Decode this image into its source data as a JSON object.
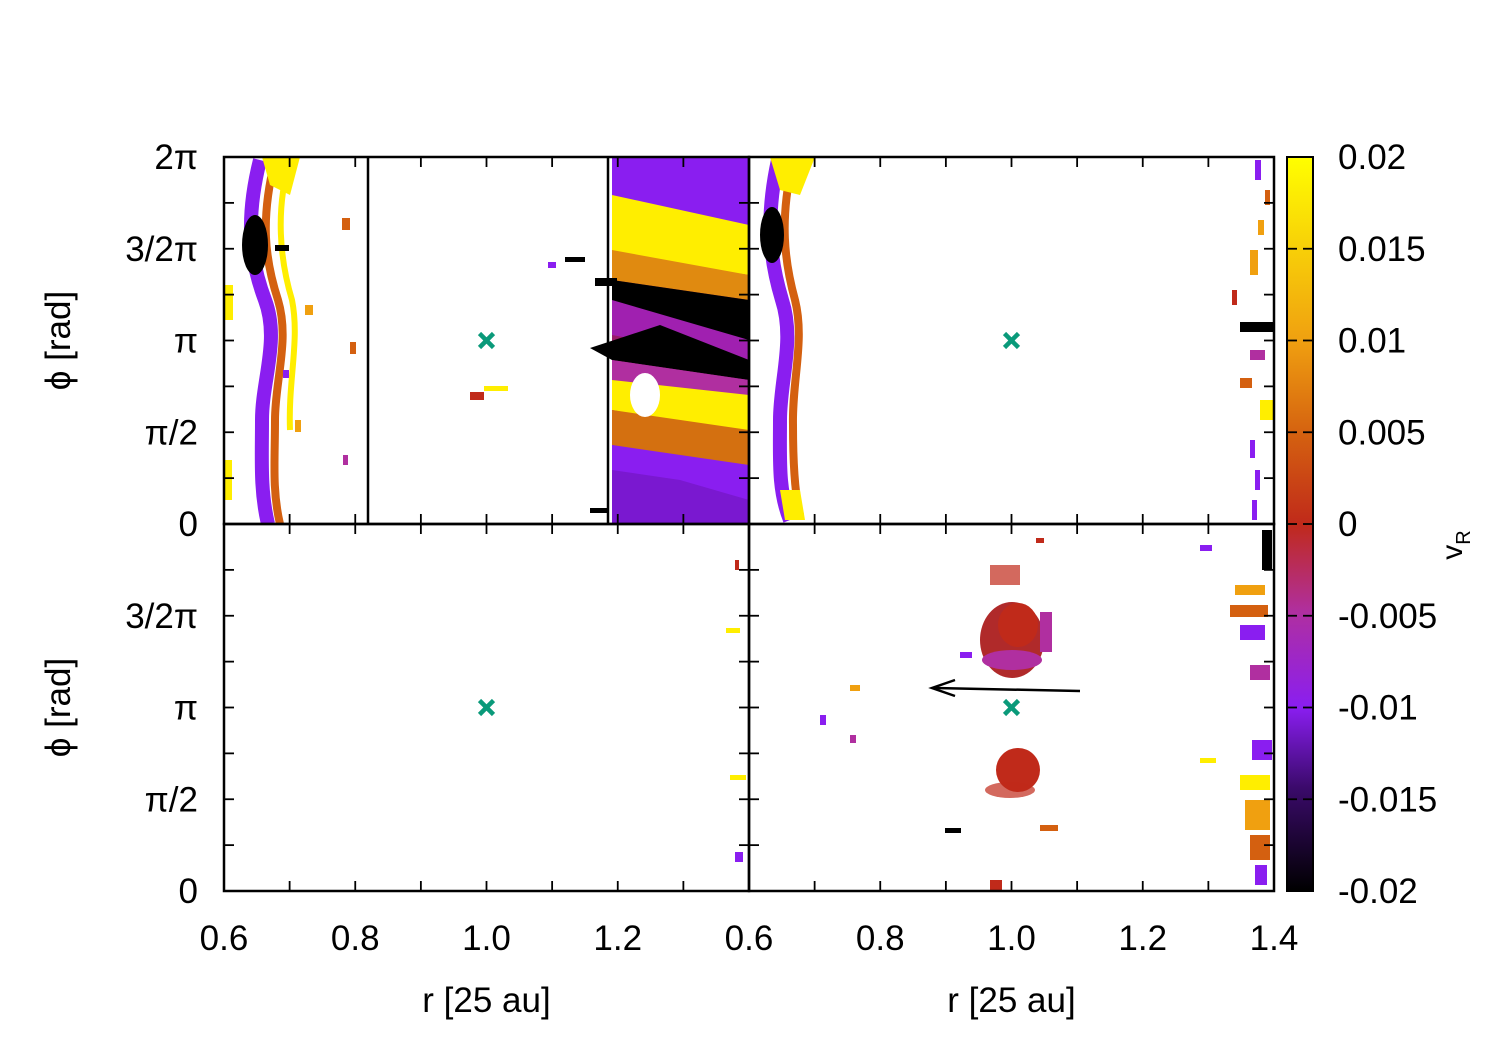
{
  "chart_data": {
    "type": "heatmap",
    "description_units": "r in units of 25 au, phi in radians, colour = v_R",
    "shared_x": {
      "label": "r [25 au]",
      "range": [
        0.6,
        1.4
      ],
      "tick_labels": [
        "0.6",
        "0.8",
        "1.0",
        "1.2",
        "1.4"
      ],
      "tick_values": [
        0.6,
        0.8,
        1.0,
        1.2,
        1.4
      ]
    },
    "shared_y": {
      "label": "ϕ [rad]",
      "range": [
        0,
        6.2832
      ],
      "tick_labels": [
        "0",
        "π/2",
        "π",
        "3/2π",
        "2π"
      ],
      "tick_values": [
        0,
        1.5708,
        3.1416,
        4.7124,
        6.2832
      ]
    },
    "colorbar": {
      "label": "v",
      "label_sub": "R",
      "range": [
        -0.02,
        0.02
      ],
      "tick_labels": [
        "0.02",
        "0.015",
        "0.01",
        "0.005",
        "0",
        "-0.005",
        "-0.01",
        "-0.015",
        "-0.02"
      ],
      "tick_values": [
        0.02,
        0.015,
        0.01,
        0.005,
        0,
        -0.005,
        -0.01,
        -0.015,
        -0.02
      ],
      "colormap": [
        "#000000",
        "#3a0a6a",
        "#8a1ef0",
        "#b02fa0",
        "#c02a1a",
        "#d46010",
        "#f0a010",
        "#ffff00"
      ]
    },
    "panels": [
      {
        "id": "top-left",
        "planet": {
          "r": 1.0,
          "phi": 3.1416,
          "marker": "x",
          "color": "#0a9a7a"
        },
        "boundary_lines_r": [
          0.82,
          1.18
        ],
        "features": [
          {
            "kind": "spiral-wake",
            "r_center": 0.66,
            "note": "inner spiral arms"
          },
          {
            "kind": "outer-disc",
            "r_from": 1.18,
            "r_to": 1.4,
            "note": "dense colored outer region"
          }
        ]
      },
      {
        "id": "top-right",
        "planet": {
          "r": 1.0,
          "phi": 3.1416,
          "marker": "x",
          "color": "#0a9a7a"
        },
        "features": [
          {
            "kind": "spiral-wake",
            "r_center": 0.66
          },
          {
            "kind": "sparse-outer",
            "r_center": 1.38
          }
        ]
      },
      {
        "id": "bottom-left",
        "planet": {
          "r": 1.0,
          "phi": 3.1416,
          "marker": "x",
          "color": "#0a9a7a"
        },
        "features": []
      },
      {
        "id": "bottom-right",
        "planet": {
          "r": 1.0,
          "phi": 3.1416,
          "marker": "x",
          "color": "#0a9a7a"
        },
        "arrow": {
          "from_r": 1.11,
          "to_r": 0.87,
          "phi": 3.25
        },
        "features": [
          {
            "kind": "vortex",
            "r": 1.0,
            "phi": 4.5
          },
          {
            "kind": "vortex",
            "r": 1.0,
            "phi": 2.2
          }
        ]
      }
    ]
  }
}
